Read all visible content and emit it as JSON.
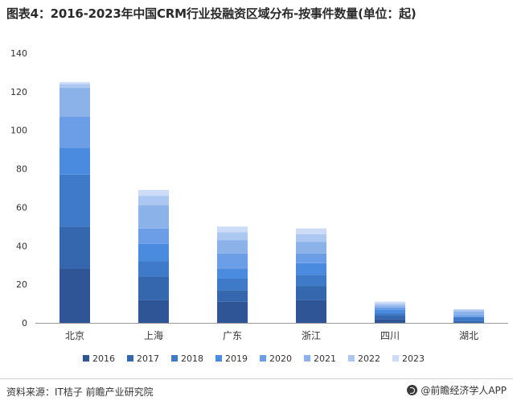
{
  "chart_data": {
    "type": "bar",
    "stacked": true,
    "title": "图表4：2016-2023年中国CRM行业投融资区域分布-按事件数量(单位：起)",
    "categories": [
      "北京",
      "上海",
      "广东",
      "浙江",
      "四川",
      "湖北"
    ],
    "series": [
      {
        "name": "2016",
        "color": "#2f5597",
        "values": [
          28,
          12,
          11,
          12,
          2,
          0
        ]
      },
      {
        "name": "2017",
        "color": "#3467ae",
        "values": [
          22,
          12,
          6,
          7,
          2,
          1
        ]
      },
      {
        "name": "2018",
        "color": "#3f7ac8",
        "values": [
          27,
          8,
          6,
          6,
          1,
          2
        ]
      },
      {
        "name": "2019",
        "color": "#4a8be0",
        "values": [
          14,
          9,
          5,
          6,
          2,
          0
        ]
      },
      {
        "name": "2020",
        "color": "#6b9ee6",
        "values": [
          16,
          8,
          8,
          5,
          1,
          1
        ]
      },
      {
        "name": "2021",
        "color": "#8cb2ea",
        "values": [
          15,
          12,
          7,
          6,
          1,
          2
        ]
      },
      {
        "name": "2022",
        "color": "#adc8f0",
        "values": [
          2,
          5,
          4,
          4,
          1,
          1
        ]
      },
      {
        "name": "2023",
        "color": "#ccdcf6",
        "values": [
          1,
          3,
          3,
          3,
          1,
          0
        ]
      }
    ],
    "ylim": [
      0,
      140
    ],
    "yticks": [
      0,
      20,
      40,
      60,
      80,
      100,
      120,
      140
    ],
    "xlabel": "",
    "ylabel": "",
    "grid": false,
    "legend_position": "bottom"
  },
  "footer": {
    "source": "资料来源：IT桔子 前瞻产业研究院",
    "brand": "@前瞻经济学人APP"
  }
}
